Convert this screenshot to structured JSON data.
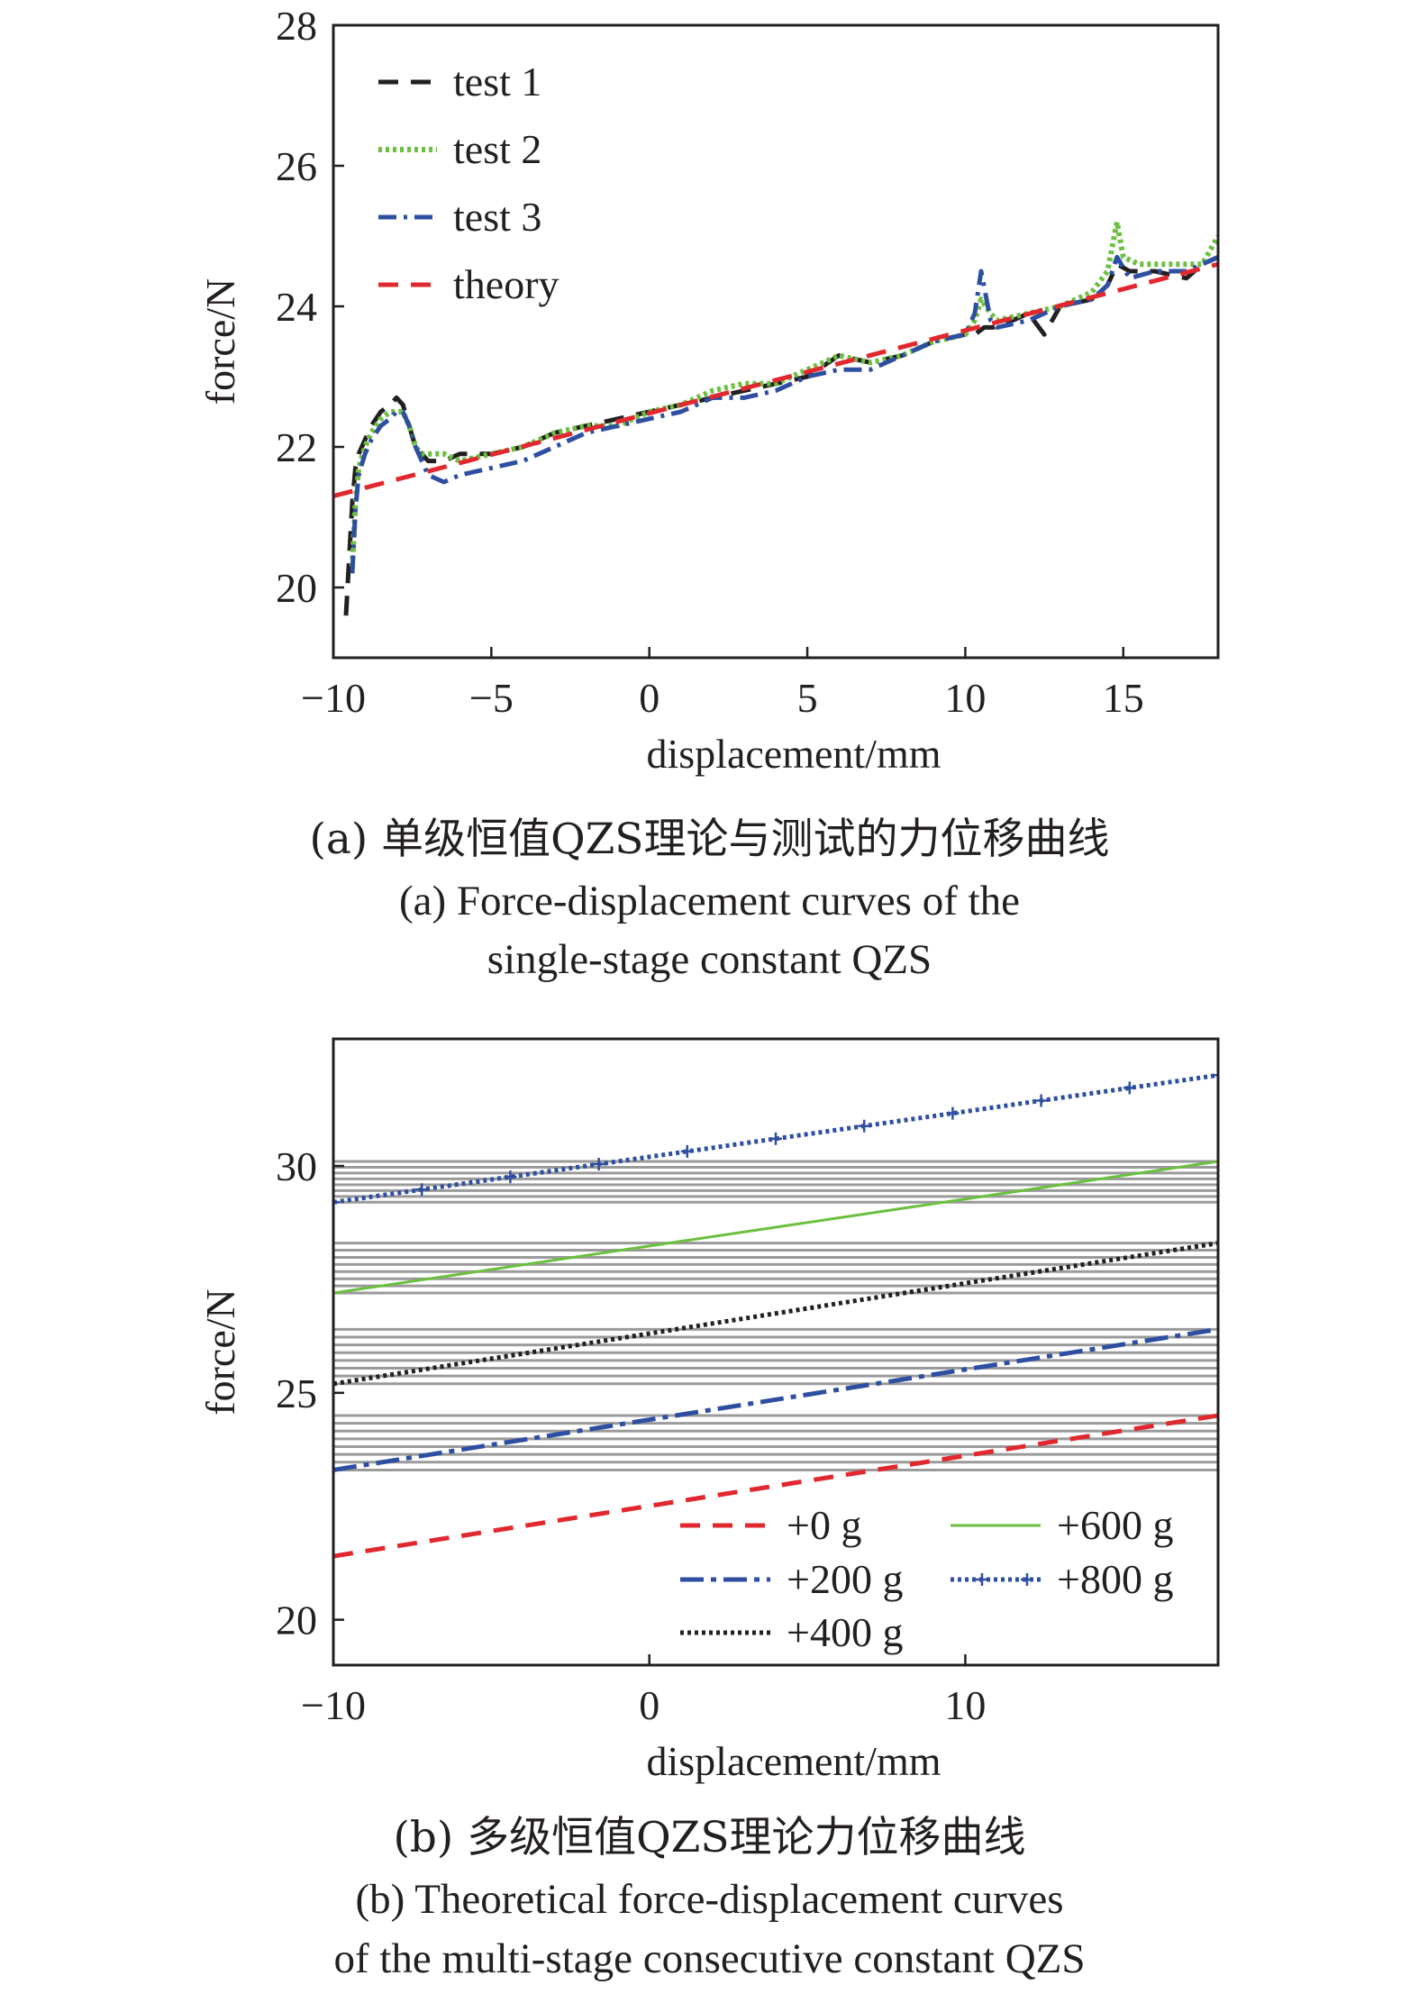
{
  "chart_data": [
    {
      "type": "line",
      "xlabel": "displacement/mm",
      "ylabel": "force/N",
      "xlim": [
        -10,
        18
      ],
      "ylim": [
        19,
        28
      ],
      "xticks": [
        -10,
        -5,
        0,
        5,
        10,
        15
      ],
      "xtick_labels": [
        "−10",
        "−5",
        "0",
        "5",
        "10",
        "15"
      ],
      "yticks": [
        20,
        22,
        24,
        26,
        28
      ],
      "ytick_labels": [
        "20",
        "22",
        "24",
        "26",
        "28"
      ],
      "legend_position": "top-left",
      "grid": false,
      "caption_cn": "(a) 单级恒值QZS理论与测试的力位移曲线",
      "caption_en": [
        "(a) Force-displacement curves of the",
        "single-stage constant QZS"
      ],
      "series": [
        {
          "name": "test 1",
          "color": "#231f20",
          "dash": "22,14",
          "width": 5,
          "x": [
            -9.6,
            -9.5,
            -9.4,
            -9.3,
            -9.2,
            -9.0,
            -8.8,
            -8.5,
            -8.2,
            -8.0,
            -7.8,
            -7.6,
            -7.4,
            -7.2,
            -7.0,
            -6.5,
            -6.0,
            -5.0,
            -4.0,
            -3.0,
            -2.0,
            -1.0,
            0.0,
            1.0,
            2.0,
            3.0,
            4.0,
            5.0,
            6.0,
            7.0,
            8.0,
            9.0,
            10.0,
            10.3,
            10.6,
            11.0,
            12.0,
            12.5,
            13.0,
            14.0,
            14.5,
            14.8,
            15.2,
            16.0,
            17.0,
            17.5,
            18.0
          ],
          "y": [
            19.6,
            20.4,
            21.2,
            21.7,
            21.9,
            22.1,
            22.3,
            22.5,
            22.6,
            22.7,
            22.6,
            22.3,
            22.0,
            21.9,
            21.8,
            21.8,
            21.9,
            21.9,
            22.0,
            22.2,
            22.3,
            22.4,
            22.5,
            22.6,
            22.7,
            22.8,
            22.9,
            23.0,
            23.3,
            23.2,
            23.3,
            23.5,
            23.6,
            23.6,
            23.7,
            23.7,
            23.9,
            23.6,
            24.0,
            24.1,
            24.3,
            24.6,
            24.5,
            24.5,
            24.4,
            24.6,
            24.7
          ]
        },
        {
          "name": "test 2",
          "color": "#6cbf3f",
          "dash": "4,4",
          "width": 6,
          "x": [
            -9.4,
            -9.3,
            -9.2,
            -9.0,
            -8.8,
            -8.5,
            -8.2,
            -8.0,
            -7.8,
            -7.6,
            -7.4,
            -7.2,
            -7.0,
            -6.5,
            -6.0,
            -5.0,
            -4.0,
            -3.0,
            -2.0,
            -1.0,
            0.0,
            1.0,
            2.0,
            3.0,
            4.0,
            5.0,
            6.0,
            7.0,
            8.0,
            9.0,
            10.0,
            10.3,
            10.5,
            10.8,
            11.0,
            12.0,
            13.0,
            14.0,
            14.5,
            14.8,
            15.0,
            15.5,
            16.0,
            17.0,
            17.5,
            18.0
          ],
          "y": [
            20.3,
            21.2,
            21.7,
            22.0,
            22.2,
            22.4,
            22.5,
            22.5,
            22.5,
            22.3,
            22.0,
            21.9,
            21.9,
            21.9,
            21.8,
            21.9,
            22.0,
            22.2,
            22.3,
            22.3,
            22.5,
            22.6,
            22.8,
            22.9,
            22.9,
            23.1,
            23.3,
            23.2,
            23.3,
            23.5,
            23.6,
            23.8,
            24.1,
            23.9,
            23.8,
            23.9,
            24.0,
            24.2,
            24.5,
            25.2,
            24.7,
            24.6,
            24.6,
            24.6,
            24.6,
            25.0
          ]
        },
        {
          "name": "test 3",
          "color": "#2e4fa1",
          "dash": "20,8,4,8",
          "width": 5,
          "x": [
            -9.4,
            -9.3,
            -9.2,
            -9.0,
            -8.8,
            -8.5,
            -8.2,
            -8.0,
            -7.8,
            -7.6,
            -7.4,
            -7.2,
            -7.0,
            -6.5,
            -6.0,
            -5.0,
            -4.0,
            -3.0,
            -2.0,
            -1.0,
            0.0,
            1.0,
            2.0,
            3.0,
            4.0,
            5.0,
            6.0,
            7.0,
            8.0,
            9.0,
            10.0,
            10.3,
            10.5,
            10.8,
            11.0,
            12.0,
            13.0,
            14.0,
            14.5,
            14.8,
            15.2,
            16.0,
            17.0,
            18.0
          ],
          "y": [
            20.2,
            21.1,
            21.6,
            21.9,
            22.1,
            22.3,
            22.4,
            22.5,
            22.5,
            22.3,
            22.0,
            21.8,
            21.6,
            21.5,
            21.6,
            21.7,
            21.8,
            22.0,
            22.2,
            22.3,
            22.4,
            22.5,
            22.7,
            22.7,
            22.8,
            23.0,
            23.1,
            23.1,
            23.3,
            23.5,
            23.6,
            23.9,
            24.5,
            23.8,
            23.7,
            23.8,
            24.0,
            24.1,
            24.3,
            24.7,
            24.4,
            24.5,
            24.5,
            24.7
          ]
        },
        {
          "name": "theory",
          "color": "#e0282e",
          "dash": "22,14",
          "width": 5,
          "x": [
            -10,
            18
          ],
          "y": [
            21.3,
            24.6
          ]
        }
      ]
    },
    {
      "type": "line",
      "xlabel": "displacement/mm",
      "ylabel": "force/N",
      "xlim": [
        -10,
        18
      ],
      "ylim": [
        19,
        32.8
      ],
      "xticks": [
        -10,
        0,
        10
      ],
      "xtick_labels": [
        "−10",
        "0",
        "10"
      ],
      "yticks": [
        20,
        25,
        30
      ],
      "ytick_labels": [
        "20",
        "25",
        "30"
      ],
      "legend_position": "bottom-right",
      "grid": false,
      "caption_cn": "(b) 多级恒值QZS理论力位移曲线",
      "caption_en": [
        "(b) Theoretical force-displacement curves",
        "of the multi-stage consecutive constant QZS"
      ],
      "series": [
        {
          "name": "+0 g",
          "color": "#e0282e",
          "dash": "22,14",
          "width": 5,
          "x": [
            -10,
            18
          ],
          "y": [
            21.4,
            24.5
          ]
        },
        {
          "name": "+200 g",
          "color": "#2e4fa1",
          "dash": "26,8,6,8",
          "width": 5,
          "x": [
            -10,
            18
          ],
          "y": [
            23.3,
            26.4
          ]
        },
        {
          "name": "+400 g",
          "color": "#231f20",
          "dash": "4,4",
          "width": 5,
          "x": [
            -10,
            18
          ],
          "y": [
            25.2,
            28.3
          ]
        },
        {
          "name": "+600 g",
          "color": "#6cbf3f",
          "dash": "",
          "width": 3,
          "x": [
            -10,
            18
          ],
          "y": [
            27.2,
            30.1
          ]
        },
        {
          "name": "+800 g",
          "color": "#2e4fa1",
          "dash": "4,4",
          "width": 5,
          "marker": "+",
          "x": [
            -10,
            18
          ],
          "y": [
            29.2,
            32.0
          ]
        }
      ],
      "bands": [
        {
          "color": "#9a9a9a",
          "y_lo": 23.3,
          "y_hi": 24.5
        },
        {
          "color": "#9a9a9a",
          "y_lo": 25.2,
          "y_hi": 26.4
        },
        {
          "color": "#9a9a9a",
          "y_lo": 27.2,
          "y_hi": 28.3
        },
        {
          "color": "#9a9a9a",
          "y_lo": 29.2,
          "y_hi": 30.1
        }
      ]
    }
  ]
}
